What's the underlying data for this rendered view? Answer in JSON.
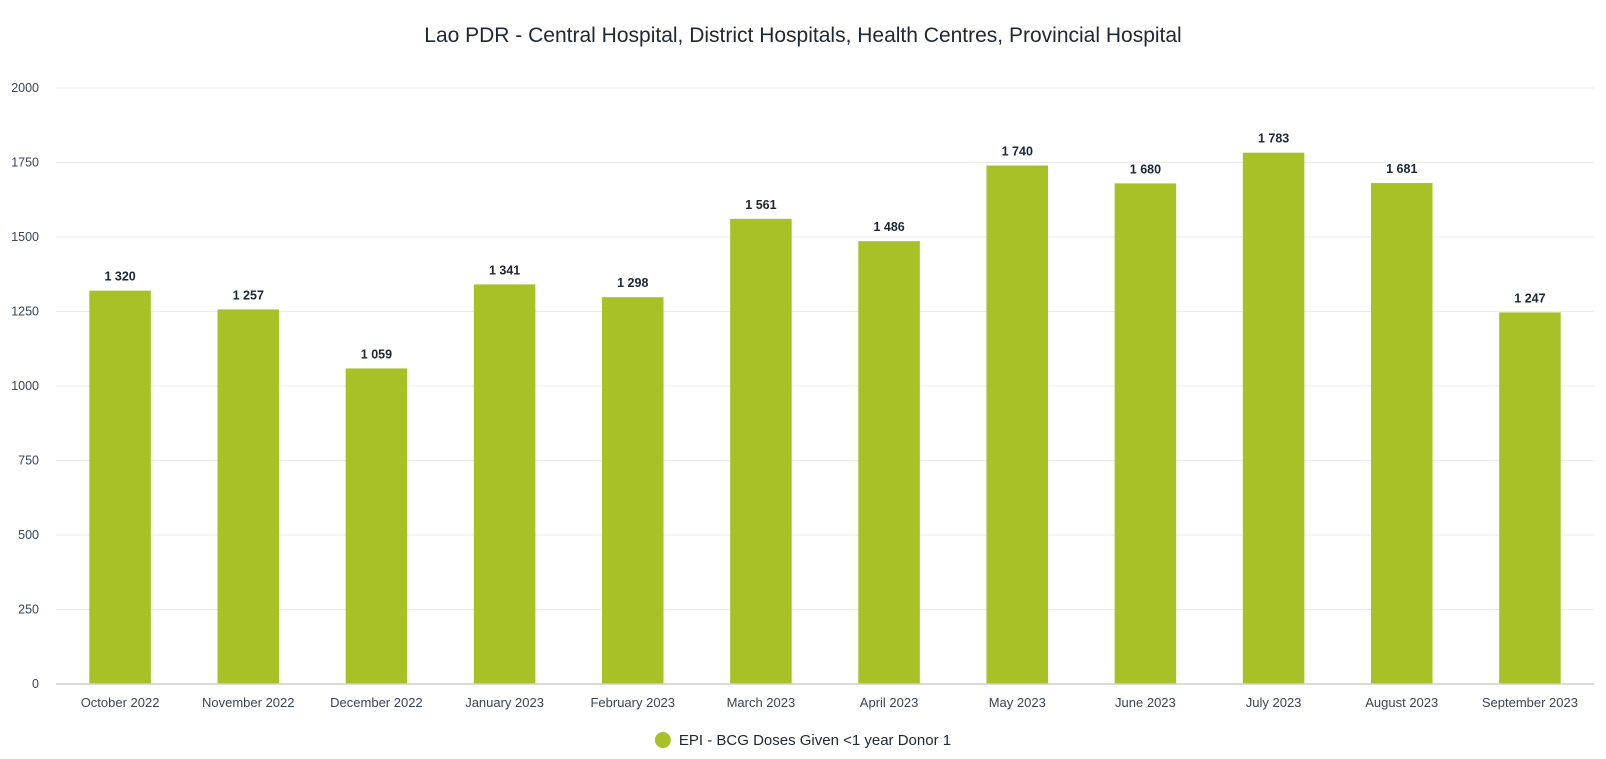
{
  "chart_data": {
    "type": "bar",
    "title": "Lao PDR - Central Hospital, District Hospitals, Health Centres, Provincial Hospital",
    "xlabel": "",
    "ylabel": "",
    "ylim": [
      0,
      2000
    ],
    "yticks": [
      0,
      250,
      500,
      750,
      1000,
      1250,
      1500,
      1750,
      2000
    ],
    "grid": true,
    "legend_position": "bottom-center",
    "categories": [
      "October 2022",
      "November 2022",
      "December 2022",
      "January 2023",
      "February 2023",
      "March 2023",
      "April 2023",
      "May 2023",
      "June 2023",
      "July 2023",
      "August 2023",
      "September 2023"
    ],
    "series": [
      {
        "name": "EPI - BCG Doses Given <1 year Donor 1",
        "color": "#a8c126",
        "values": [
          1320,
          1257,
          1059,
          1341,
          1298,
          1561,
          1486,
          1740,
          1680,
          1783,
          1681,
          1247
        ],
        "labels": [
          "1 320",
          "1 257",
          "1 059",
          "1 341",
          "1 298",
          "1 561",
          "1 486",
          "1 740",
          "1 680",
          "1 783",
          "1 681",
          "1 247"
        ]
      }
    ]
  }
}
